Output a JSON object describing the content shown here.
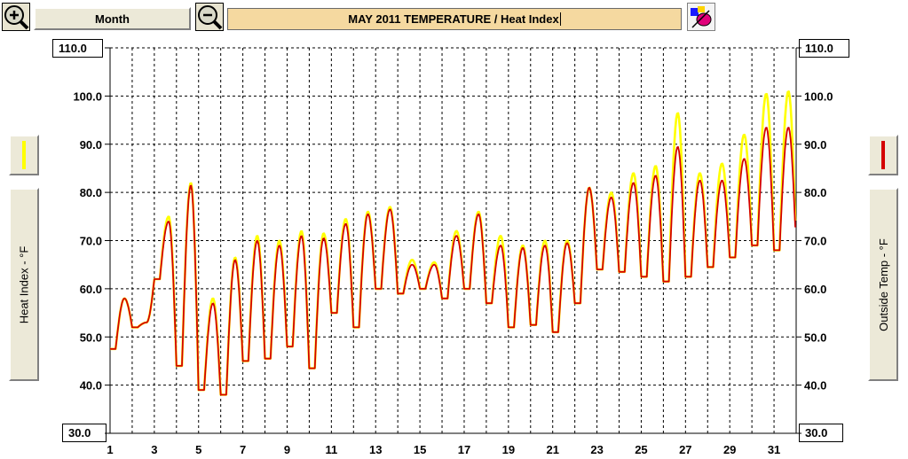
{
  "toolbar": {
    "zoom_in_icon": "magnifier-plus-icon",
    "zoom_out_icon": "magnifier-minus-icon",
    "period_label": "Month",
    "title": "MAY 2011  TEMPERATURE / Heat Index",
    "settings_icon": "paint-palette-icon"
  },
  "left_axis": {
    "title": "Heat Index - °F",
    "top_value": "110.0",
    "bottom_value": "30.0",
    "legend_color": "#ffff00"
  },
  "right_axis": {
    "title": "Outside Temp - °F",
    "top_value": "110.0",
    "bottom_value": "30.0",
    "legend_color": "#d40000"
  },
  "chart_data": {
    "type": "line",
    "title": "MAY 2011  TEMPERATURE / Heat Index",
    "ylabel_left": "Heat Index - °F",
    "ylabel_right": "Outside Temp - °F",
    "ylim": [
      30,
      110
    ],
    "xlim": [
      1,
      32
    ],
    "y_ticks": [
      "30.0",
      "40.0",
      "50.0",
      "60.0",
      "70.0",
      "80.0",
      "90.0",
      "100.0",
      "110.0"
    ],
    "x_ticks": [
      "1",
      "3",
      "5",
      "7",
      "9",
      "11",
      "13",
      "15",
      "17",
      "19",
      "21",
      "23",
      "25",
      "27",
      "29",
      "31"
    ],
    "grid": true,
    "series": [
      {
        "name": "Heat Index",
        "color": "#ffff00",
        "daily_low": [
          47.5,
          52,
          62,
          44,
          39,
          38,
          45,
          45.5,
          48,
          43.5,
          55,
          52,
          60,
          59,
          60,
          58,
          60,
          57,
          52,
          52.5,
          51,
          57,
          64,
          63.5,
          62.5,
          61.5,
          62.5,
          64.5,
          66.5,
          69,
          68
        ],
        "daily_high": [
          58,
          53,
          75,
          82,
          58,
          66.5,
          71,
          70,
          72,
          71.5,
          74.5,
          76,
          77,
          66,
          65.5,
          72,
          76,
          71,
          69,
          70,
          70,
          81,
          80,
          84,
          85.5,
          96.5,
          84,
          86,
          92,
          100.5,
          101
        ]
      },
      {
        "name": "Outside Temp",
        "color": "#d40000",
        "daily_low": [
          47.5,
          52,
          62,
          44,
          39,
          38,
          45,
          45.5,
          48,
          43.5,
          55,
          52,
          60,
          59,
          60,
          58,
          60,
          57,
          52,
          52.5,
          51,
          57,
          64,
          63.5,
          62.5,
          61.5,
          62.5,
          64.5,
          66.5,
          69,
          68
        ],
        "daily_high": [
          58,
          53,
          74,
          81.5,
          57,
          66,
          70,
          69,
          71,
          70.5,
          73.5,
          75.5,
          76.5,
          65,
          65,
          71,
          75.5,
          69,
          68.5,
          69,
          69.5,
          81,
          79,
          82,
          83.5,
          89.5,
          82.5,
          82.5,
          87,
          93.5,
          93.5
        ]
      }
    ]
  }
}
